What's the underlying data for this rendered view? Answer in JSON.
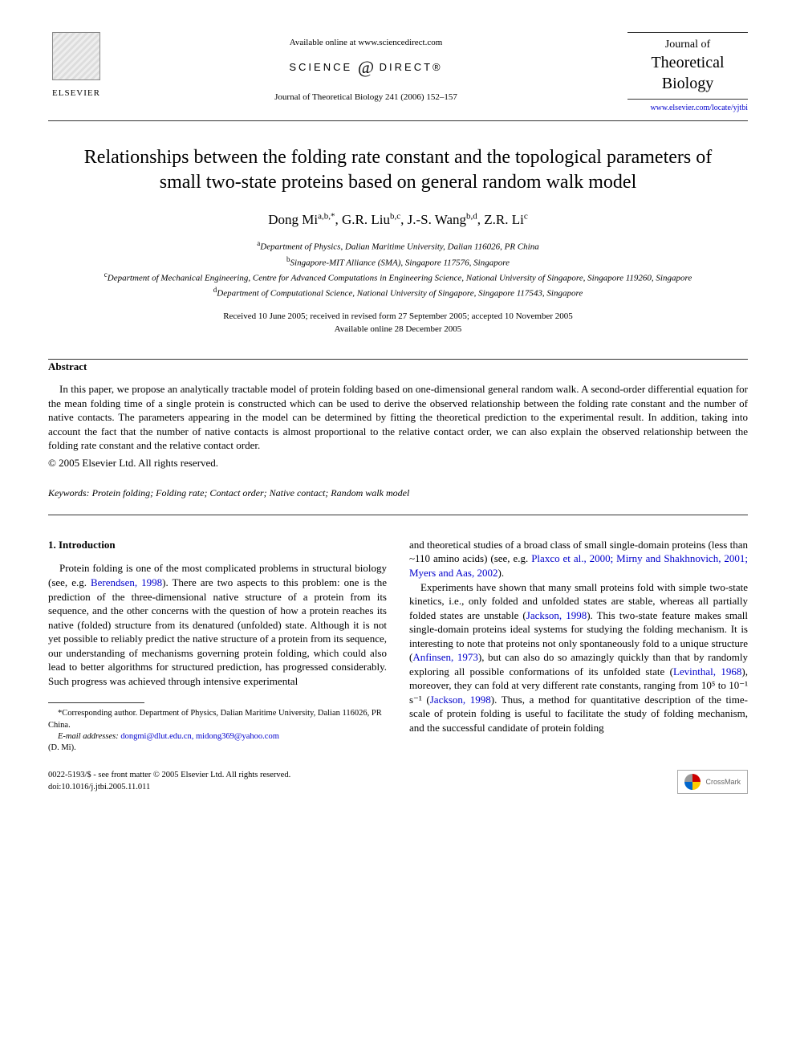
{
  "header": {
    "elsevier_label": "ELSEVIER",
    "available_text": "Available online at www.sciencedirect.com",
    "science_direct_left": "SCIENCE",
    "science_direct_right": "DIRECT®",
    "journal_ref": "Journal of Theoretical Biology 241 (2006) 152–157",
    "journal_logo_line1": "Journal of",
    "journal_logo_line2": "Theoretical",
    "journal_logo_line3": "Biology",
    "journal_url": "www.elsevier.com/locate/yjtbi"
  },
  "title": "Relationships between the folding rate constant and the topological parameters of small two-state proteins based on general random walk model",
  "authors_html": "Dong Mi<sup>a,b,*</sup>, G.R. Liu<sup>b,c</sup>, J.-S. Wang<sup>b,d</sup>, Z.R. Li<sup>c</sup>",
  "affiliations": {
    "a": "Department of Physics, Dalian Maritime University, Dalian 116026, PR China",
    "b": "Singapore-MIT Alliance (SMA), Singapore 117576, Singapore",
    "c": "Department of Mechanical Engineering, Centre for Advanced Computations in Engineering Science, National University of Singapore, Singapore 119260, Singapore",
    "d": "Department of Computational Science, National University of Singapore, Singapore 117543, Singapore"
  },
  "dates": {
    "line1": "Received 10 June 2005; received in revised form 27 September 2005; accepted 10 November 2005",
    "line2": "Available online 28 December 2005"
  },
  "abstract": {
    "heading": "Abstract",
    "text": "In this paper, we propose an analytically tractable model of protein folding based on one-dimensional general random walk. A second-order differential equation for the mean folding time of a single protein is constructed which can be used to derive the observed relationship between the folding rate constant and the number of native contacts. The parameters appearing in the model can be determined by fitting the theoretical prediction to the experimental result. In addition, taking into account the fact that the number of native contacts is almost proportional to the relative contact order, we can also explain the observed relationship between the folding rate constant and the relative contact order.",
    "copyright": "© 2005 Elsevier Ltd. All rights reserved."
  },
  "keywords": {
    "label": "Keywords:",
    "text": "Protein folding; Folding rate; Contact order; Native contact; Random walk model"
  },
  "body": {
    "section_heading": "1. Introduction",
    "col1_p1a": "Protein folding is one of the most complicated problems in structural biology (see, e.g. ",
    "col1_cite1": "Berendsen, 1998",
    "col1_p1b": "). There are two aspects to this problem: one is the prediction of the three-dimensional native structure of a protein from its sequence, and the other concerns with the question of how a protein reaches its native (folded) structure from its denatured (unfolded) state. Although it is not yet possible to reliably predict the native structure of a protein from its sequence, our understanding of mechanisms governing protein folding, which could also lead to better algorithms for structured prediction, has progressed considerably. Such progress was achieved through intensive experimental",
    "col2_p1a": "and theoretical studies of a broad class of small single-domain proteins (less than ~110 amino acids) (see, e.g. ",
    "col2_cite1": "Plaxco et al., 2000; Mirny and Shakhnovich, 2001; Myers and Aas, 2002",
    "col2_p1b": ").",
    "col2_p2a": "Experiments have shown that many small proteins fold with simple two-state kinetics, i.e., only folded and unfolded states are stable, whereas all partially folded states are unstable (",
    "col2_cite2": "Jackson, 1998",
    "col2_p2b": "). This two-state feature makes small single-domain proteins ideal systems for studying the folding mechanism. It is interesting to note that proteins not only spontaneously fold to a unique structure (",
    "col2_cite3": "Anfinsen, 1973",
    "col2_p2c": "), but can also do so amazingly quickly than that by randomly exploring all possible conformations of its unfolded state (",
    "col2_cite4": "Levinthal, 1968",
    "col2_p2d": "), moreover, they can fold at very different rate constants, ranging from 10⁵ to 10⁻¹ s⁻¹ (",
    "col2_cite5": "Jackson, 1998",
    "col2_p2e": "). Thus, a method for quantitative description of the time-scale of protein folding is useful to facilitate the study of folding mechanism, and the successful candidate of protein folding"
  },
  "footnote": {
    "corresponding": "*Corresponding author. Department of Physics, Dalian Maritime University, Dalian 116026, PR China.",
    "email_label": "E-mail addresses:",
    "emails": "dongmi@dlut.edu.cn, midong369@yahoo.com",
    "email_author": "(D. Mi)."
  },
  "footer": {
    "issn_line": "0022-5193/$ - see front matter © 2005 Elsevier Ltd. All rights reserved.",
    "doi_line": "doi:10.1016/j.jtbi.2005.11.011",
    "crossmark": "CrossMark"
  },
  "colors": {
    "link": "#0000cc",
    "text": "#000000",
    "background": "#ffffff",
    "rule": "#333333"
  }
}
